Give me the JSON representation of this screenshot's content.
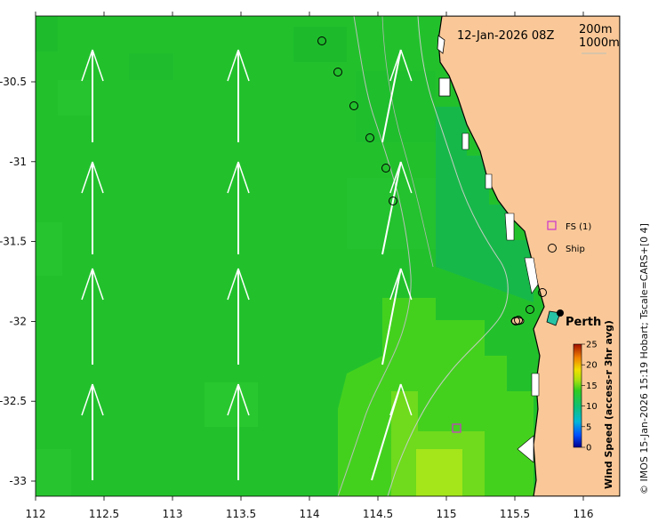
{
  "map": {
    "timestamp": "12-Jan-2026 08Z",
    "contour_legend": [
      "200m",
      "1000m"
    ],
    "city_label": "Perth",
    "credit": "© IMOS 15-Jan-2026 15:19 Hobart; Tscale=CARS+[0 4]",
    "legend": {
      "fs_label": "FS (1)",
      "ship_label": "Ship",
      "fs_color": "#cc33cc",
      "ship_color": "#000000"
    },
    "x_ticks": [
      "112",
      "112.5",
      "113",
      "113.5",
      "114",
      "114.5",
      "115",
      "115.5",
      "116"
    ],
    "y_ticks": [
      "-30.5",
      "-31",
      "-31.5",
      "-32",
      "-32.5",
      "-33"
    ],
    "colorbar": {
      "title": "Wind Speed (access-r 3hr avg)",
      "ticks": [
        "25",
        "20",
        "15",
        "10",
        "5",
        "0"
      ],
      "min": 0,
      "max": 25
    },
    "colors": {
      "land": "#fac898",
      "water_main": "#22c12c",
      "water_east": "#32cf27",
      "water_light": "#8ee21f",
      "arrow": "#ffffff"
    },
    "wind_arrow_icon": "north-arrow-icon",
    "ship_icon": "circle-icon",
    "fs_icon": "square-icon"
  }
}
